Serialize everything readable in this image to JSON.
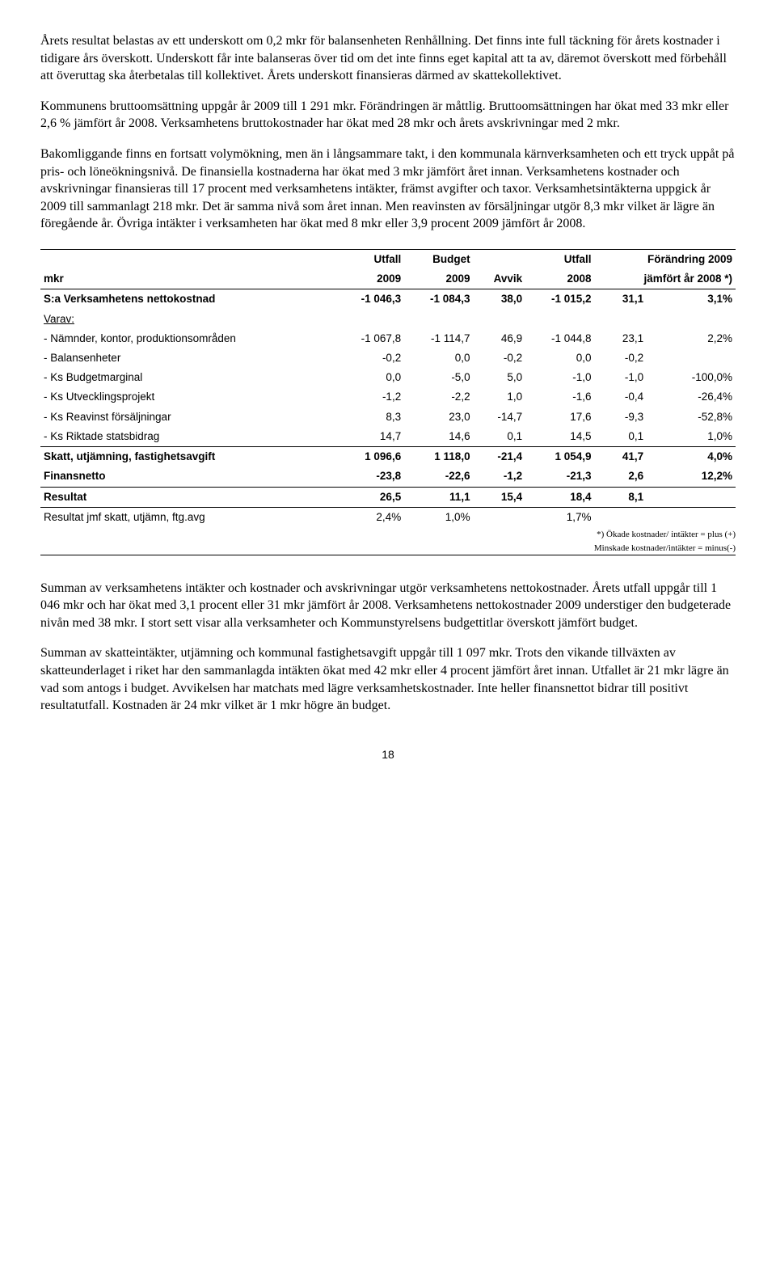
{
  "paragraphs": {
    "p1": "Årets resultat belastas av ett underskott om 0,2 mkr för balansenheten Renhållning. Det finns inte full täckning för årets kostnader i tidigare års överskott. Underskott får inte balanseras över tid om det inte finns eget kapital att ta av, däremot överskott med förbehåll att överuttag ska återbetalas till kollektivet. Årets underskott finansieras därmed av skattekollektivet.",
    "p2": "Kommunens bruttoomsättning uppgår år 2009 till 1 291 mkr. Förändringen är måttlig. Bruttoomsättningen har ökat med 33 mkr eller 2,6 % jämfört år 2008. Verksamhetens bruttokostnader har ökat med 28 mkr och årets avskrivningar med 2 mkr.",
    "p3": "Bakomliggande finns en fortsatt volymökning, men än i långsammare takt, i den kommunala kärnverksamheten och ett tryck uppåt på pris- och löneökningsnivå. De finansiella kostnaderna har ökat med 3 mkr jämfört året innan. Verksamhetens kostnader och avskrivningar finansieras till 17 procent med verksamhetens intäkter, främst avgifter och taxor. Verksamhetsintäkterna uppgick år 2009 till sammanlagt 218 mkr. Det är samma nivå som året innan. Men reavinsten av försäljningar utgör 8,3 mkr vilket är lägre än föregående år. Övriga intäkter i verksamheten har ökat med 8 mkr eller 3,9 procent 2009 jämfört år 2008.",
    "p4": "Summan av verksamhetens intäkter och kostnader och avskrivningar utgör verksamhetens nettokostnader. Årets utfall uppgår till 1 046 mkr och har ökat med 3,1 procent eller 31 mkr jämfört år 2008. Verksamhetens nettokostnader 2009 understiger den budgeterade nivån med 38 mkr. I stort sett visar alla verksamheter och Kommunstyrelsens budgettitlar överskott jämfört budget.",
    "p5": "Summan av skatteintäkter, utjämning och kommunal fastighetsavgift uppgår till 1 097 mkr. Trots den vikande tillväxten av skatteunderlaget i riket har den sammanlagda intäkten ökat med 42 mkr eller 4 procent jämfört året innan. Utfallet är 21 mkr lägre än vad som antogs i budget. Avvikelsen har matchats med lägre verksamhetskostnader. Inte heller finansnettot bidrar till positivt resultatutfall. Kostnaden är 24 mkr vilket är 1 mkr högre än budget."
  },
  "table": {
    "header": {
      "col0_top": "",
      "col0_bot": "mkr",
      "col1_top": "Utfall",
      "col1_bot": "2009",
      "col2_top": "Budget",
      "col2_bot": "2009",
      "col3_top": "",
      "col3_bot": "Avvik",
      "col4_top": "Utfall",
      "col4_bot": "2008",
      "col5_top": "Förändring 2009",
      "col5_bot": "jämfört år 2008 *)"
    },
    "rows": [
      {
        "label": "S:a Verksamhetens nettokostnad",
        "c1": "-1 046,3",
        "c2": "-1 084,3",
        "c3": "38,0",
        "c4": "-1 015,2",
        "c5": "31,1",
        "c6": "3,1%",
        "bold": true
      },
      {
        "label": "Varav:",
        "c1": "",
        "c2": "",
        "c3": "",
        "c4": "",
        "c5": "",
        "c6": "",
        "underline": true
      },
      {
        "label": "- Nämnder, kontor, produktionsområden",
        "c1": "-1 067,8",
        "c2": "-1 114,7",
        "c3": "46,9",
        "c4": "-1 044,8",
        "c5": "23,1",
        "c6": "2,2%"
      },
      {
        "label": "- Balansenheter",
        "c1": "-0,2",
        "c2": "0,0",
        "c3": "-0,2",
        "c4": "0,0",
        "c5": "-0,2",
        "c6": ""
      },
      {
        "label": "- Ks Budgetmarginal",
        "c1": "0,0",
        "c2": "-5,0",
        "c3": "5,0",
        "c4": "-1,0",
        "c5": "-1,0",
        "c6": "-100,0%"
      },
      {
        "label": "- Ks Utvecklingsprojekt",
        "c1": "-1,2",
        "c2": "-2,2",
        "c3": "1,0",
        "c4": "-1,6",
        "c5": "-0,4",
        "c6": "-26,4%"
      },
      {
        "label": "- Ks Reavinst försäljningar",
        "c1": "8,3",
        "c2": "23,0",
        "c3": "-14,7",
        "c4": "17,6",
        "c5": "-9,3",
        "c6": "-52,8%"
      },
      {
        "label": "- Ks Riktade statsbidrag",
        "c1": "14,7",
        "c2": "14,6",
        "c3": "0,1",
        "c4": "14,5",
        "c5": "0,1",
        "c6": "1,0%"
      }
    ],
    "group2": [
      {
        "label": "Skatt, utjämning, fastighetsavgift",
        "c1": "1 096,6",
        "c2": "1 118,0",
        "c3": "-21,4",
        "c4": "1 054,9",
        "c5": "41,7",
        "c6": "4,0%",
        "bold": true
      },
      {
        "label": "Finansnetto",
        "c1": "-23,8",
        "c2": "-22,6",
        "c3": "-1,2",
        "c4": "-21,3",
        "c5": "2,6",
        "c6": "12,2%",
        "bold": true
      }
    ],
    "group3": [
      {
        "label": "Resultat",
        "c1": "26,5",
        "c2": "11,1",
        "c3": "15,4",
        "c4": "18,4",
        "c5": "8,1",
        "c6": "",
        "bold": true
      }
    ],
    "group4": [
      {
        "label": "Resultat jmf skatt, utjämn, ftg.avg",
        "c1": "2,4%",
        "c2": "1,0%",
        "c3": "",
        "c4": "1,7%",
        "c5": "",
        "c6": ""
      }
    ],
    "footnotes": {
      "f1": "*) Ökade kostnader/ intäkter = plus (+)",
      "f2": "Minskade kostnader/intäkter = minus(-)"
    }
  },
  "pageNumber": "18"
}
